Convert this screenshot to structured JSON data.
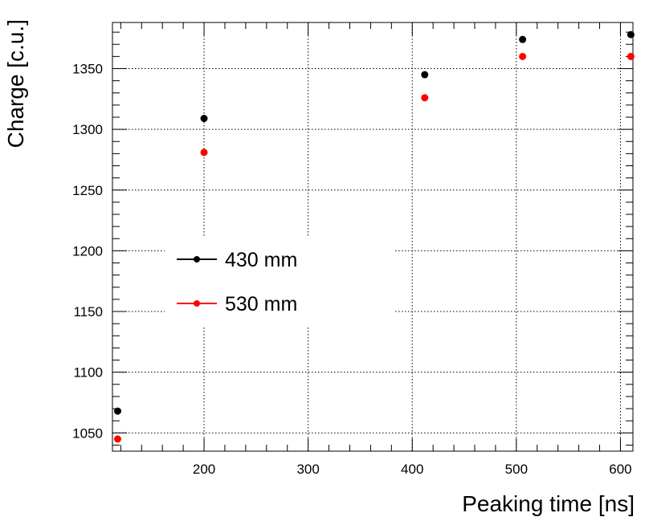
{
  "chart_data": {
    "type": "scatter",
    "xlabel": "Peaking time [ns]",
    "ylabel": "Charge [c.u.]",
    "xlim": [
      112,
      612
    ],
    "ylim": [
      1035,
      1388
    ],
    "x_ticks": [
      200,
      300,
      400,
      500,
      600
    ],
    "y_ticks": [
      1050,
      1100,
      1150,
      1200,
      1250,
      1300,
      1350
    ],
    "grid": true,
    "legend_position": "center-left",
    "series": [
      {
        "name": "430 mm",
        "color": "#000000",
        "x": [
          117,
          200,
          412,
          506,
          610
        ],
        "y": [
          1068,
          1309,
          1345,
          1374,
          1378
        ]
      },
      {
        "name": "530 mm",
        "color": "#ff0000",
        "x": [
          117,
          200,
          412,
          506,
          610
        ],
        "y": [
          1045,
          1281,
          1326,
          1360,
          1360
        ]
      }
    ]
  }
}
